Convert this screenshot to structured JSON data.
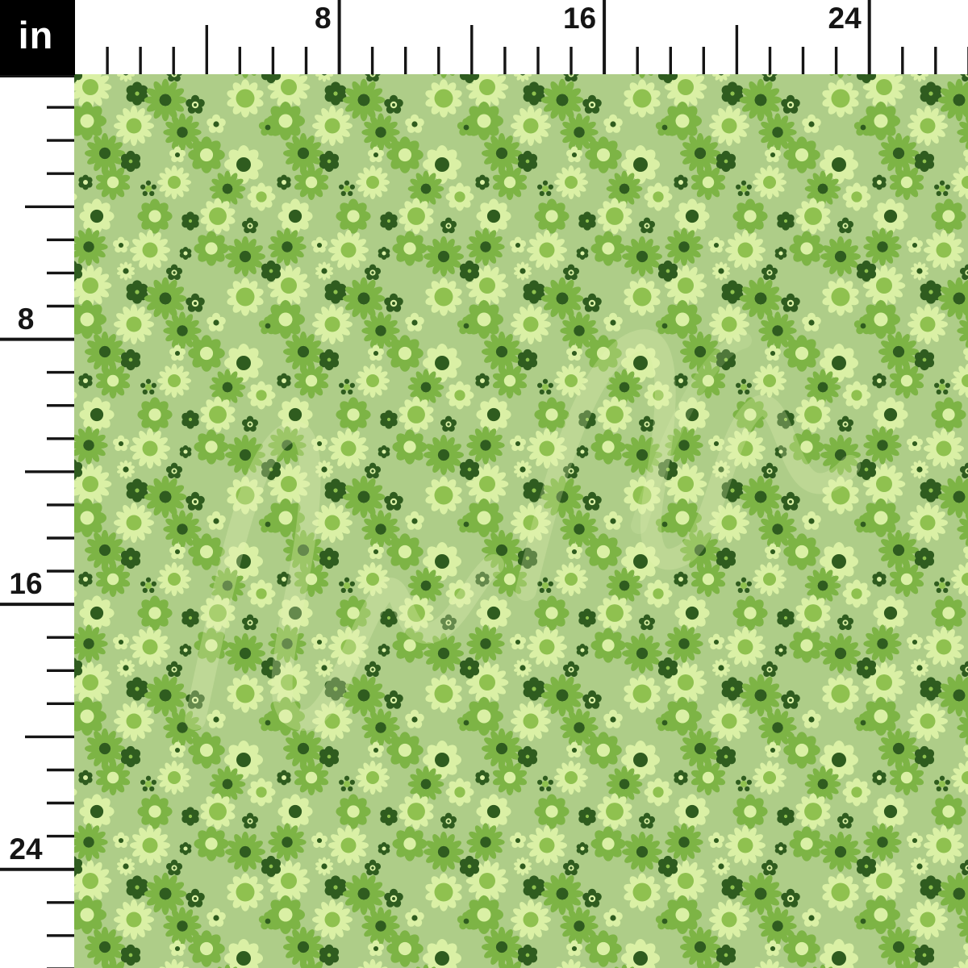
{
  "unit_box": {
    "label": "in"
  },
  "rulers": {
    "unit": "inches",
    "ink_color": "#151515",
    "background": "#ffffff",
    "top": {
      "marks": [
        {
          "label": "8",
          "inch": 8
        },
        {
          "label": "16",
          "inch": 16
        },
        {
          "label": "24",
          "inch": 24
        }
      ]
    },
    "left": {
      "marks": [
        {
          "label": "8",
          "inch": 8
        },
        {
          "label": "16",
          "inch": 16
        },
        {
          "label": "24",
          "inch": 24
        }
      ]
    }
  },
  "fabric": {
    "pattern_name": "ditsy-daisy-floral",
    "watermark_present": true,
    "colors": {
      "background": "#aecd88",
      "petal_light": "#daf0a5",
      "petal_mid": "#7db445",
      "center_mid": "#8fc14f",
      "petal_dark": "#2f5c1f",
      "watermark": "#e4f3b6"
    }
  },
  "unit_box_colors": {
    "background": "#000000",
    "text": "#ffffff"
  }
}
